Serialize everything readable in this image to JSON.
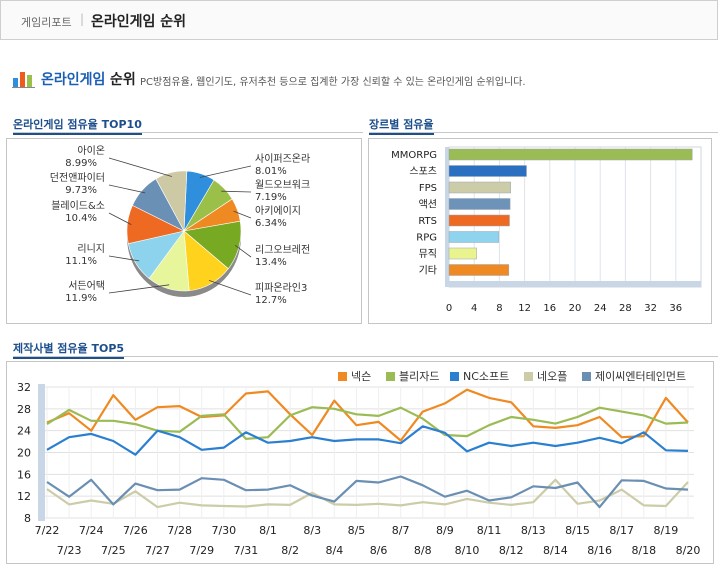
{
  "header": {
    "breadcrumb": "게임리포트",
    "separator": "|",
    "title": "온라인게임 순위"
  },
  "section_header": {
    "title_part1": "온라인게임",
    "title_part2": "순위",
    "description": "PC방점유율, 웹인기도, 유저추천 등으로 집계한 가장 신뢰할 수 있는 온라인게임 순위입니다."
  },
  "sections": {
    "top10": "온라인게임 점유율 TOP10",
    "genre": "장르별 점유율",
    "publisher": "제작사별 점유율 TOP5"
  },
  "chart_data": [
    {
      "type": "pie",
      "title": "온라인게임 점유율 TOP10",
      "slices": [
        {
          "label": "사이퍼즈온라인",
          "display": "사이퍼즈온라",
          "value": 8.01,
          "value_label": "8.01%",
          "color": "#2f8fdc"
        },
        {
          "label": "월드오브워크래프트",
          "display": "월드오브워크",
          "value": 7.19,
          "value_label": "7.19%",
          "color": "#9bc04a"
        },
        {
          "label": "아키에이지",
          "display": "아키에이지",
          "value": 6.34,
          "value_label": "6.34%",
          "color": "#ef8a22"
        },
        {
          "label": "리그오브레전드",
          "display": "리그오브레전",
          "value": 13.4,
          "value_label": "13.4%",
          "color": "#77aa22"
        },
        {
          "label": "피파온라인3",
          "display": "피파온라인3",
          "value": 12.7,
          "value_label": "12.7%",
          "color": "#ffd21e"
        },
        {
          "label": "서든어택",
          "display": "서든어택",
          "value": 11.9,
          "value_label": "11.9%",
          "color": "#e7f59b"
        },
        {
          "label": "리니지",
          "display": "리니지",
          "value": 11.1,
          "value_label": "11.1%",
          "color": "#8dd3ee"
        },
        {
          "label": "블레이드&소울",
          "display": "블레이드&소",
          "value": 10.4,
          "value_label": "10.4%",
          "color": "#ee6a22"
        },
        {
          "label": "던전앤파이터",
          "display": "던전앤파이터",
          "value": 9.73,
          "value_label": "9.73%",
          "color": "#6a90b5"
        },
        {
          "label": "아이온",
          "display": "아이온",
          "value": 8.99,
          "value_label": "8.99%",
          "color": "#ccc9a4"
        }
      ]
    },
    {
      "type": "bar",
      "orientation": "horizontal",
      "title": "장르별 점유율",
      "categories": [
        "MMORPG",
        "스포츠",
        "FPS",
        "액션",
        "RTS",
        "RPG",
        "뮤직",
        "기타"
      ],
      "values": [
        38.6,
        12.3,
        9.8,
        9.7,
        9.6,
        7.9,
        4.4,
        9.5
      ],
      "colors": [
        "#9bbb55",
        "#2b6fc0",
        "#cccca8",
        "#6e93b8",
        "#ee6a22",
        "#8fd4ee",
        "#eaf48e",
        "#ef8a22"
      ],
      "xlim": [
        0,
        40
      ],
      "xticks": [
        0,
        4,
        8,
        12,
        16,
        20,
        24,
        28,
        32,
        36
      ],
      "grid": true
    },
    {
      "type": "line",
      "title": "제작사별 점유율 TOP5",
      "x": [
        "7/22",
        "7/23",
        "7/24",
        "7/25",
        "7/26",
        "7/27",
        "7/28",
        "7/29",
        "7/30",
        "7/31",
        "8/1",
        "8/2",
        "8/3",
        "8/4",
        "8/5",
        "8/6",
        "8/7",
        "8/8",
        "8/9",
        "8/10",
        "8/11",
        "8/12",
        "8/13",
        "8/14",
        "8/15",
        "8/16",
        "8/17",
        "8/18",
        "8/19",
        "8/20"
      ],
      "x_tick_labels_top": [
        "7/22",
        "7/24",
        "7/26",
        "7/28",
        "7/30",
        "8/1",
        "8/3",
        "8/5",
        "8/7",
        "8/9",
        "8/11",
        "8/13",
        "8/15",
        "8/17",
        "8/19"
      ],
      "x_tick_labels_bottom": [
        "7/23",
        "7/25",
        "7/27",
        "7/29",
        "7/31",
        "8/2",
        "8/4",
        "8/6",
        "8/8",
        "8/10",
        "8/12",
        "8/14",
        "8/16",
        "8/18",
        "8/20"
      ],
      "ylim": [
        8,
        32
      ],
      "yticks": [
        8,
        12,
        16,
        20,
        24,
        28,
        32
      ],
      "grid": true,
      "legend": "top-right",
      "series": [
        {
          "name": "넥슨",
          "color": "#ef8a22",
          "values": [
            25.5,
            27.2,
            24.0,
            30.5,
            26.0,
            28.3,
            28.5,
            26.5,
            26.8,
            30.8,
            31.2,
            27.0,
            23.2,
            29.5,
            25.0,
            25.6,
            22.2,
            27.5,
            29.0,
            31.5,
            30.0,
            29.2,
            24.8,
            24.5,
            25.0,
            26.5,
            22.8,
            23.0,
            30.0,
            25.5
          ]
        },
        {
          "name": "블리자드",
          "color": "#9bbb55",
          "values": [
            25.2,
            27.8,
            25.8,
            25.8,
            25.2,
            24.0,
            23.8,
            26.7,
            27.0,
            22.5,
            22.8,
            26.8,
            28.3,
            28.0,
            27.0,
            26.7,
            28.2,
            26.2,
            23.2,
            23.0,
            25.0,
            26.5,
            26.0,
            25.3,
            26.5,
            28.2,
            27.5,
            26.8,
            25.3,
            25.5
          ]
        },
        {
          "name": "NC소프트",
          "color": "#2b7fd0",
          "values": [
            20.5,
            22.8,
            23.4,
            22.1,
            19.6,
            24.0,
            22.8,
            20.5,
            20.9,
            23.7,
            21.8,
            22.1,
            22.8,
            22.1,
            22.4,
            22.4,
            21.7,
            24.8,
            23.6,
            20.2,
            21.8,
            21.2,
            21.8,
            21.2,
            21.8,
            22.7,
            21.7,
            23.7,
            20.4,
            20.3
          ]
        },
        {
          "name": "네오플",
          "color": "#cccca8",
          "values": [
            13.3,
            10.5,
            11.2,
            10.6,
            12.9,
            10.0,
            10.8,
            10.3,
            10.2,
            10.1,
            10.5,
            10.4,
            12.6,
            10.5,
            10.4,
            10.6,
            10.3,
            10.9,
            10.5,
            11.5,
            10.8,
            10.4,
            10.9,
            15.0,
            10.6,
            11.2,
            13.2,
            10.3,
            10.2,
            14.6
          ]
        },
        {
          "name": "제이씨엔터테인먼트",
          "color": "#6a8fb3",
          "values": [
            14.6,
            11.9,
            15.0,
            10.5,
            14.3,
            13.1,
            13.2,
            15.3,
            15.0,
            13.1,
            13.2,
            14.0,
            12.1,
            11.0,
            14.8,
            14.5,
            15.6,
            14.0,
            11.9,
            13.0,
            11.2,
            11.8,
            13.8,
            13.5,
            14.5,
            10.0,
            14.9,
            14.8,
            13.4,
            13.2
          ]
        }
      ]
    }
  ]
}
